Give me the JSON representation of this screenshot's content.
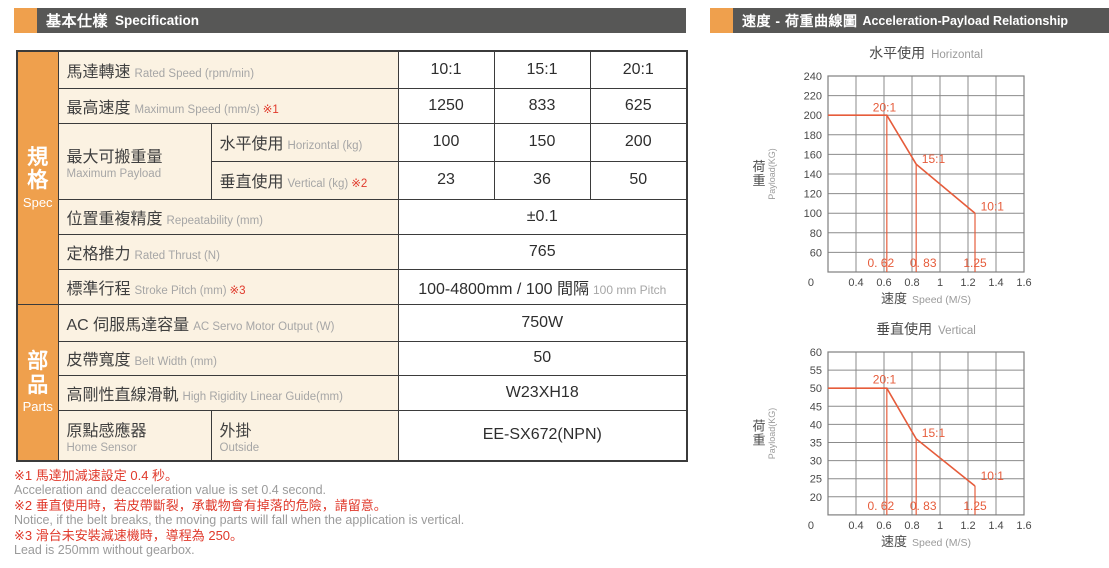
{
  "colors": {
    "accent_orange": "#EFA04D",
    "header_bar": "#575756",
    "table_border": "#3B3B3B",
    "label_bg": "#FBF2E2",
    "note_red": "#E0392B",
    "chart_red": "#E65C3B",
    "grid_gray": "#8B8B8B"
  },
  "left_header": {
    "zh": "基本仕樣",
    "en": "Specification"
  },
  "right_header": {
    "zh": "速度 - 荷重曲線圖",
    "en": "Acceleration-Payload Relationship"
  },
  "spec_table": {
    "sections": [
      {
        "zh": "規格",
        "en": "Spec"
      },
      {
        "zh": "部品",
        "en": "Parts"
      }
    ],
    "rows": {
      "rated_speed": {
        "zh": "馬達轉速",
        "en": "Rated Speed (rpm/min)",
        "values": [
          "10:1",
          "15:1",
          "20:1"
        ]
      },
      "max_speed": {
        "zh": "最高速度",
        "en": "Maximum Speed (mm/s)",
        "note": "※1",
        "values": [
          "1250",
          "833",
          "625"
        ]
      },
      "payload": {
        "zh": "最大可搬重量",
        "en": "Maximum Payload",
        "horizontal": {
          "zh": "水平使用",
          "en": "Horizontal (kg)",
          "values": [
            "100",
            "150",
            "200"
          ]
        },
        "vertical": {
          "zh": "垂直使用",
          "en": "Vertical (kg)",
          "note": "※2",
          "values": [
            "23",
            "36",
            "50"
          ]
        }
      },
      "repeatability": {
        "zh": "位置重複精度",
        "en": "Repeatability (mm)",
        "value": "±0.1"
      },
      "thrust": {
        "zh": "定格推力",
        "en": "Rated Thrust (N)",
        "value": "765"
      },
      "stroke": {
        "zh": "標準行程",
        "en": "Stroke Pitch (mm)",
        "note": "※3",
        "value": "100-4800mm / 100 間隔",
        "value_sub": "100 mm Pitch"
      },
      "servo": {
        "zh": "AC 伺服馬達容量",
        "en": "AC Servo Motor Output (W)",
        "value": "750W"
      },
      "belt": {
        "zh": "皮帶寬度",
        "en": "Belt Width (mm)",
        "value": "50"
      },
      "guide": {
        "zh": "高剛性直線滑軌",
        "en": "High Rigidity Linear Guide(mm)",
        "value": "W23XH18"
      },
      "home_sensor": {
        "zh": "原點感應器",
        "en": "Home Sensor",
        "sub_zh": "外掛",
        "sub_en": "Outside",
        "value": "EE-SX672(NPN)"
      }
    }
  },
  "footnotes": [
    {
      "zh": "※1 馬達加減速設定 0.4 秒。",
      "en": "Acceleration and deacceleration value is set 0.4 second."
    },
    {
      "zh": "※2 垂直使用時，若皮帶斷裂，承載物會有掉落的危險，請留意。",
      "en": "Notice, if the belt breaks, the moving parts will fall when the application is vertical."
    },
    {
      "zh": "※3 滑台未安裝減速機時，導程為 250。",
      "en": "Lead is 250mm without gearbox."
    }
  ],
  "chart_data": [
    {
      "type": "line",
      "title_zh": "水平使用",
      "title_en": "Horizontal",
      "ylabel_zh": "荷重",
      "ylabel_en": "Payload(KG)",
      "xlabel_zh": "速度",
      "xlabel_en": "Speed (M/S)",
      "x_ticks": [
        0,
        0.4,
        0.6,
        0.8,
        1,
        1.2,
        1.4,
        1.6
      ],
      "y_ticks_desc": [
        240,
        220,
        200,
        180,
        160,
        140,
        120,
        100,
        80,
        60,
        0
      ],
      "line_color": "#E65C3B",
      "envelope": [
        [
          0,
          200
        ],
        [
          0.62,
          200
        ],
        [
          0.83,
          150
        ],
        [
          1.25,
          100
        ]
      ],
      "drops": [
        {
          "x": 0.62,
          "y": 200,
          "label": "0. 62",
          "dx": -6
        },
        {
          "x": 0.83,
          "y": 150,
          "label": "0. 83",
          "dx": 7
        },
        {
          "x": 1.25,
          "y": 100,
          "label": "1.25",
          "dx": 0
        }
      ],
      "ratio_labels": [
        {
          "text": "20:1",
          "x": 0.52,
          "y": 204
        },
        {
          "text": "15:1",
          "x": 0.87,
          "y": 151
        },
        {
          "text": "10:1",
          "x": 1.29,
          "y": 103
        }
      ]
    },
    {
      "type": "line",
      "title_zh": "垂直使用",
      "title_en": "Vertical",
      "ylabel_zh": "荷重",
      "ylabel_en": "Payload(KG)",
      "xlabel_zh": "速度",
      "xlabel_en": "Speed (M/S)",
      "x_ticks": [
        0,
        0.4,
        0.6,
        0.8,
        1,
        1.2,
        1.4,
        1.6
      ],
      "y_ticks_desc": [
        60,
        55,
        50,
        45,
        40,
        35,
        30,
        25,
        20,
        0
      ],
      "line_color": "#E65C3B",
      "envelope": [
        [
          0,
          50
        ],
        [
          0.62,
          50
        ],
        [
          0.83,
          36
        ],
        [
          1.25,
          23
        ]
      ],
      "drops": [
        {
          "x": 0.62,
          "y": 50,
          "label": "0. 62",
          "dx": -6
        },
        {
          "x": 0.83,
          "y": 36,
          "label": "0. 83",
          "dx": 7
        },
        {
          "x": 1.25,
          "y": 23,
          "label": "1.25",
          "dx": 0
        }
      ],
      "ratio_labels": [
        {
          "text": "20:1",
          "x": 0.52,
          "y": 51.3
        },
        {
          "text": "15:1",
          "x": 0.87,
          "y": 36.5
        },
        {
          "text": "10:1",
          "x": 1.29,
          "y": 24.7
        }
      ]
    }
  ]
}
